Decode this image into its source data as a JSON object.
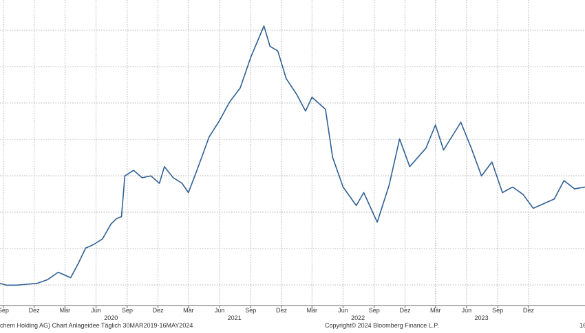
{
  "footer": {
    "left": "chem Holding AG) Chart Anlageidee  Täglich 30MAR2019-16MAY2024",
    "copyright": "Copyright© 2024 Bloomberg Finance L.P.",
    "right": "16"
  },
  "chart_data": {
    "type": "line",
    "x_range": [
      "2019-08-22",
      "2024-05-16"
    ],
    "grid": true,
    "colors": {
      "line": "#2f5f95",
      "grid": "#9a9a9a",
      "axis": "#666666"
    },
    "month_ticks": [
      {
        "date": "2019-09-01",
        "label": "Sep"
      },
      {
        "date": "2019-12-01",
        "label": "Dez"
      },
      {
        "date": "2020-03-01",
        "label": "Mär"
      },
      {
        "date": "2020-06-01",
        "label": "Jun"
      },
      {
        "date": "2020-09-01",
        "label": "Sep"
      },
      {
        "date": "2020-12-01",
        "label": "Dez"
      },
      {
        "date": "2021-03-01",
        "label": "Mär"
      },
      {
        "date": "2021-06-01",
        "label": "Jun"
      },
      {
        "date": "2021-09-01",
        "label": "Sep"
      },
      {
        "date": "2021-12-01",
        "label": "Dez"
      },
      {
        "date": "2022-03-01",
        "label": "Mär"
      },
      {
        "date": "2022-06-01",
        "label": "Jun"
      },
      {
        "date": "2022-09-01",
        "label": "Sep"
      },
      {
        "date": "2022-12-01",
        "label": "Dez"
      },
      {
        "date": "2023-03-01",
        "label": "Mär"
      },
      {
        "date": "2023-06-01",
        "label": "Jun"
      },
      {
        "date": "2023-09-01",
        "label": "Sep"
      },
      {
        "date": "2023-12-01",
        "label": "Dez"
      }
    ],
    "year_labels": [
      {
        "date": "2020-07-15",
        "label": "2020"
      },
      {
        "date": "2021-07-15",
        "label": "2021"
      },
      {
        "date": "2022-07-15",
        "label": "2022"
      },
      {
        "date": "2023-07-15",
        "label": "2023"
      }
    ],
    "series": [
      {
        "points": [
          [
            "2019-08-22",
            0.84
          ],
          [
            "2019-09-10",
            0.82
          ],
          [
            "2019-10-10",
            0.82
          ],
          [
            "2019-11-10",
            0.83
          ],
          [
            "2019-12-10",
            0.84
          ],
          [
            "2020-01-10",
            0.88
          ],
          [
            "2020-02-10",
            0.96
          ],
          [
            "2020-03-18",
            0.9
          ],
          [
            "2020-04-10",
            1.06
          ],
          [
            "2020-05-01",
            1.22
          ],
          [
            "2020-05-25",
            1.26
          ],
          [
            "2020-06-20",
            1.32
          ],
          [
            "2020-07-15",
            1.48
          ],
          [
            "2020-08-01",
            1.54
          ],
          [
            "2020-08-15",
            1.56
          ],
          [
            "2020-08-25",
            2.0
          ],
          [
            "2020-09-20",
            2.06
          ],
          [
            "2020-10-15",
            1.98
          ],
          [
            "2020-11-10",
            2.0
          ],
          [
            "2020-12-05",
            1.92
          ],
          [
            "2020-12-20",
            2.1
          ],
          [
            "2021-01-15",
            1.98
          ],
          [
            "2021-02-10",
            1.92
          ],
          [
            "2021-03-01",
            1.82
          ],
          [
            "2021-03-25",
            2.05
          ],
          [
            "2021-05-01",
            2.42
          ],
          [
            "2021-06-01",
            2.6
          ],
          [
            "2021-07-01",
            2.8
          ],
          [
            "2021-08-01",
            2.95
          ],
          [
            "2021-09-01",
            3.28
          ],
          [
            "2021-10-10",
            3.62
          ],
          [
            "2021-10-28",
            3.4
          ],
          [
            "2021-11-20",
            3.35
          ],
          [
            "2021-12-15",
            3.05
          ],
          [
            "2022-01-15",
            2.88
          ],
          [
            "2022-02-10",
            2.7
          ],
          [
            "2022-03-01",
            2.85
          ],
          [
            "2022-04-10",
            2.72
          ],
          [
            "2022-05-01",
            2.2
          ],
          [
            "2022-06-01",
            1.88
          ],
          [
            "2022-07-10",
            1.68
          ],
          [
            "2022-08-01",
            1.82
          ],
          [
            "2022-09-10",
            1.5
          ],
          [
            "2022-10-15",
            1.9
          ],
          [
            "2022-11-15",
            2.4
          ],
          [
            "2022-12-15",
            2.1
          ],
          [
            "2023-02-01",
            2.3
          ],
          [
            "2023-03-01",
            2.55
          ],
          [
            "2023-03-25",
            2.28
          ],
          [
            "2023-05-15",
            2.58
          ],
          [
            "2023-06-15",
            2.3
          ],
          [
            "2023-07-15",
            2.0
          ],
          [
            "2023-08-15",
            2.15
          ],
          [
            "2023-09-15",
            1.82
          ],
          [
            "2023-10-15",
            1.88
          ],
          [
            "2023-11-15",
            1.8
          ],
          [
            "2023-12-15",
            1.65
          ],
          [
            "2024-02-15",
            1.75
          ],
          [
            "2024-03-15",
            1.95
          ],
          [
            "2024-04-15",
            1.86
          ],
          [
            "2024-05-16",
            1.88
          ]
        ]
      }
    ]
  }
}
